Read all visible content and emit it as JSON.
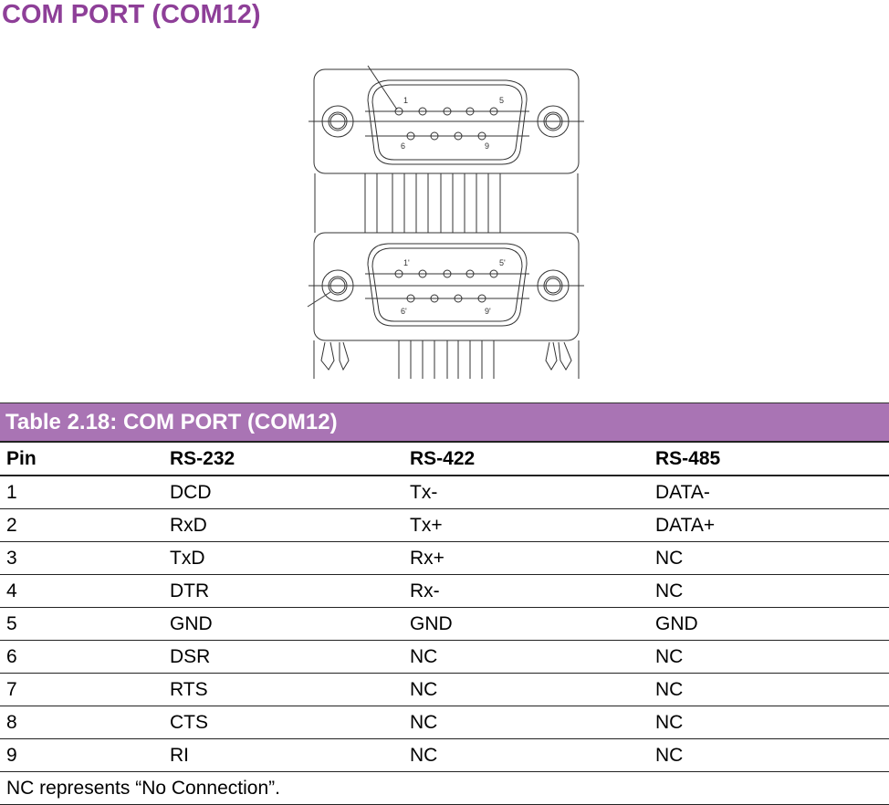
{
  "title": "COM PORT (COM12)",
  "diagram": {
    "top_pin_labels": [
      "1",
      "5",
      "6",
      "9"
    ],
    "bottom_pin_labels": [
      "1'",
      "5'",
      "6'",
      "9'"
    ]
  },
  "table": {
    "caption": "Table 2.18: COM PORT (COM12)",
    "headers": [
      "Pin",
      "RS-232",
      "RS-422",
      "RS-485"
    ],
    "rows": [
      [
        "1",
        "DCD",
        "Tx-",
        "DATA-"
      ],
      [
        "2",
        "RxD",
        "Tx+",
        "DATA+"
      ],
      [
        "3",
        "TxD",
        "Rx+",
        "NC"
      ],
      [
        "4",
        "DTR",
        "Rx-",
        "NC"
      ],
      [
        "5",
        "GND",
        "GND",
        "GND"
      ],
      [
        "6",
        "DSR",
        "NC",
        "NC"
      ],
      [
        "7",
        "RTS",
        "NC",
        "NC"
      ],
      [
        "8",
        "CTS",
        "NC",
        "NC"
      ],
      [
        "9",
        "RI",
        "NC",
        "NC"
      ]
    ],
    "note": "NC represents “No Connection”."
  }
}
